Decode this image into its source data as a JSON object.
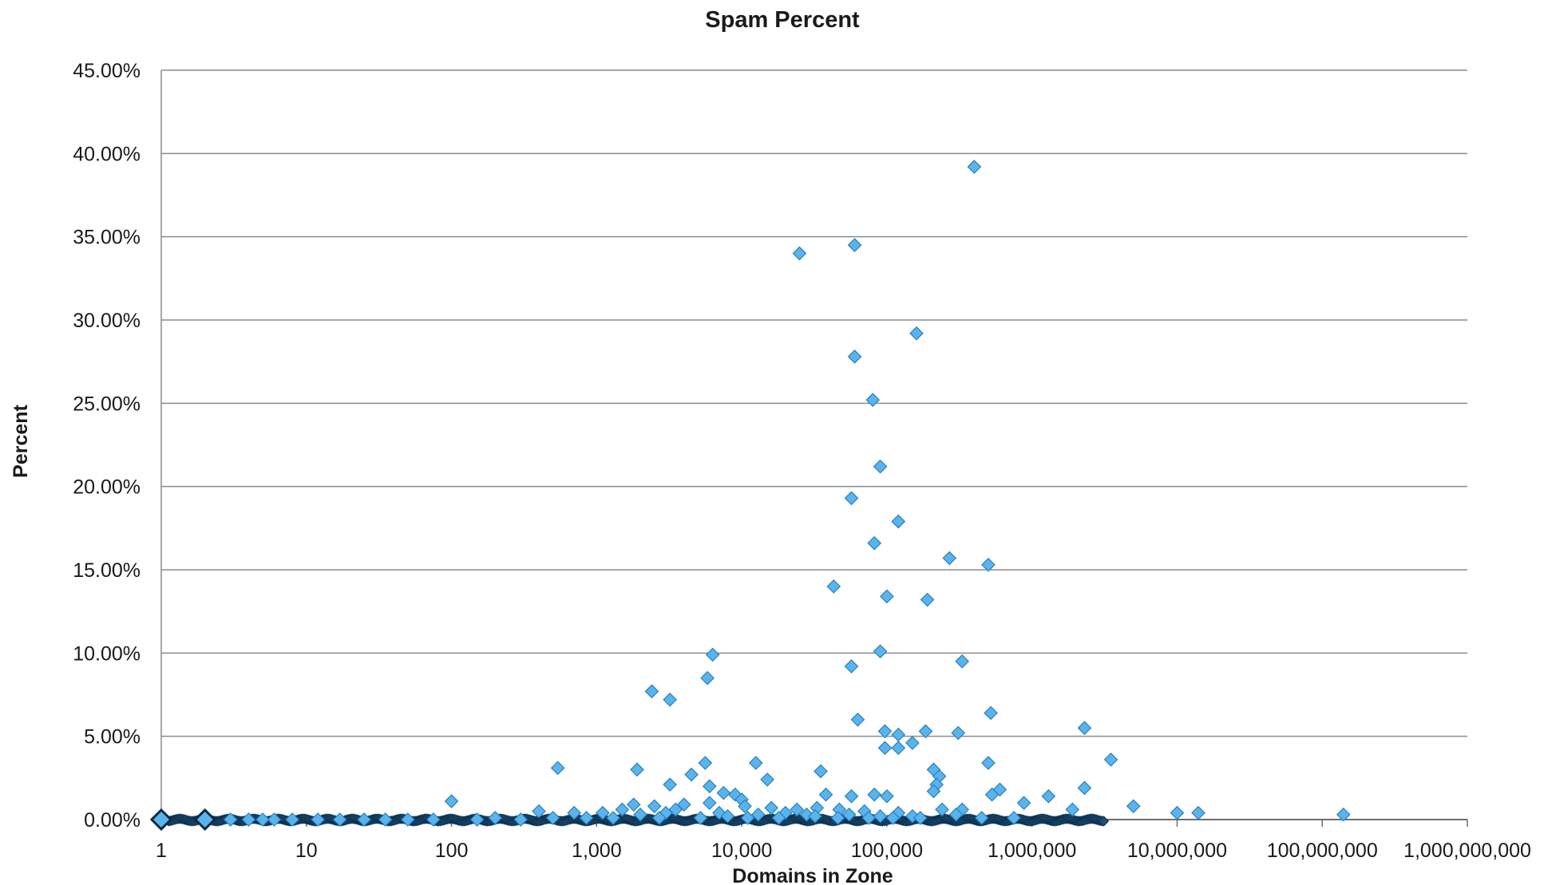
{
  "chart_data": {
    "type": "scatter",
    "title": "Spam Percent",
    "xlabel": "Domains in Zone",
    "ylabel": "Percent",
    "x_scale": "log",
    "xlim": [
      1,
      1000000000
    ],
    "ylim": [
      0,
      45
    ],
    "grid": "horizontal",
    "legend": "none",
    "marker": "diamond",
    "colors": {
      "marker_fill": "#5ab4ec",
      "marker_stroke": "#2a7fc0",
      "gridline": "#8c8c8c",
      "small_marker_fill": "#1a4f7a"
    },
    "x_ticks": [
      "1",
      "10",
      "100",
      "1,000",
      "10,000",
      "100,000",
      "1,000,000",
      "10,000,000",
      "100,000,000",
      "1,000,000,000"
    ],
    "y_ticks": [
      "0.00%",
      "5.00%",
      "10.00%",
      "15.00%",
      "20.00%",
      "25.00%",
      "30.00%",
      "35.00%",
      "40.00%",
      "45.00%"
    ],
    "points": [
      [
        400000,
        39.2
      ],
      [
        60000,
        34.5
      ],
      [
        25000,
        34.0
      ],
      [
        160000,
        29.2
      ],
      [
        60000,
        27.8
      ],
      [
        80000,
        25.2
      ],
      [
        90000,
        21.2
      ],
      [
        57000,
        19.3
      ],
      [
        120000,
        17.9
      ],
      [
        82000,
        16.6
      ],
      [
        270000,
        15.7
      ],
      [
        500000,
        15.3
      ],
      [
        43000,
        14.0
      ],
      [
        100000,
        13.4
      ],
      [
        190000,
        13.2
      ],
      [
        90000,
        10.1
      ],
      [
        6300,
        9.9
      ],
      [
        330000,
        9.5
      ],
      [
        57000,
        9.2
      ],
      [
        5800,
        8.5
      ],
      [
        2400,
        7.7
      ],
      [
        3200,
        7.2
      ],
      [
        520000,
        6.4
      ],
      [
        63000,
        6.0
      ],
      [
        2300000,
        5.5
      ],
      [
        97000,
        5.3
      ],
      [
        185000,
        5.3
      ],
      [
        310000,
        5.2
      ],
      [
        120000,
        5.1
      ],
      [
        150000,
        4.6
      ],
      [
        97000,
        4.3
      ],
      [
        120000,
        4.3
      ],
      [
        3500000,
        3.6
      ],
      [
        540,
        3.1
      ],
      [
        1900,
        3.0
      ],
      [
        5600,
        3.4
      ],
      [
        12500,
        3.4
      ],
      [
        500000,
        3.4
      ],
      [
        35000,
        2.9
      ],
      [
        210000,
        3.0
      ],
      [
        230000,
        2.6
      ],
      [
        4500,
        2.7
      ],
      [
        15000,
        2.4
      ],
      [
        3200,
        2.1
      ],
      [
        220000,
        2.1
      ],
      [
        2300000,
        1.9
      ],
      [
        6000,
        2.0
      ],
      [
        600000,
        1.8
      ],
      [
        530000,
        1.5
      ],
      [
        1300000,
        1.4
      ],
      [
        7500,
        1.6
      ],
      [
        9000,
        1.5
      ],
      [
        38000,
        1.5
      ],
      [
        57000,
        1.4
      ],
      [
        82000,
        1.5
      ],
      [
        100000,
        1.4
      ],
      [
        210000,
        1.7
      ],
      [
        100,
        1.1
      ],
      [
        10000,
        1.2
      ],
      [
        880000,
        1.0
      ],
      [
        5000000,
        0.8
      ],
      [
        1900000,
        0.6
      ],
      [
        330000,
        0.6
      ],
      [
        1800,
        0.9
      ],
      [
        2500,
        0.8
      ],
      [
        1500,
        0.6
      ],
      [
        4000,
        0.9
      ],
      [
        6000,
        1.0
      ],
      [
        10500,
        0.8
      ],
      [
        16000,
        0.7
      ],
      [
        24000,
        0.6
      ],
      [
        33000,
        0.7
      ],
      [
        47000,
        0.6
      ],
      [
        70000,
        0.5
      ],
      [
        120000,
        0.4
      ],
      [
        240000,
        0.6
      ],
      [
        400,
        0.5
      ],
      [
        700,
        0.4
      ],
      [
        1100,
        0.4
      ],
      [
        2000,
        0.3
      ],
      [
        3000,
        0.4
      ],
      [
        3500,
        0.6
      ],
      [
        7000,
        0.4
      ],
      [
        13000,
        0.3
      ],
      [
        20000,
        0.4
      ],
      [
        28000,
        0.3
      ],
      [
        55000,
        0.3
      ],
      [
        90000,
        0.2
      ],
      [
        150000,
        0.2
      ],
      [
        10000000,
        0.4
      ],
      [
        14000000,
        0.4
      ],
      [
        140000000,
        0.3
      ],
      [
        750000,
        0.1
      ],
      [
        450000,
        0.1
      ],
      [
        300000,
        0.3
      ],
      [
        170000,
        0.1
      ],
      [
        110000,
        0.1
      ],
      [
        75000,
        0.1
      ],
      [
        46000,
        0.1
      ],
      [
        32000,
        0.2
      ],
      [
        18000,
        0.1
      ],
      [
        11000,
        0.1
      ],
      [
        8000,
        0.2
      ],
      [
        5200,
        0.1
      ],
      [
        2700,
        0.1
      ],
      [
        1300,
        0.1
      ],
      [
        850,
        0.1
      ],
      [
        500,
        0.1
      ],
      [
        300,
        0.0
      ],
      [
        200,
        0.1
      ],
      [
        150,
        0.0
      ],
      [
        75,
        0.0
      ],
      [
        50,
        0.0
      ],
      [
        35,
        0.0
      ],
      [
        25,
        0.0
      ],
      [
        17,
        0.0
      ],
      [
        12,
        0.0
      ],
      [
        8,
        0.0
      ],
      [
        6,
        0.0
      ],
      [
        5,
        0.0
      ],
      [
        4,
        0.0
      ],
      [
        3,
        0.0
      ],
      [
        2,
        0.0
      ],
      [
        1,
        0.0
      ]
    ]
  }
}
